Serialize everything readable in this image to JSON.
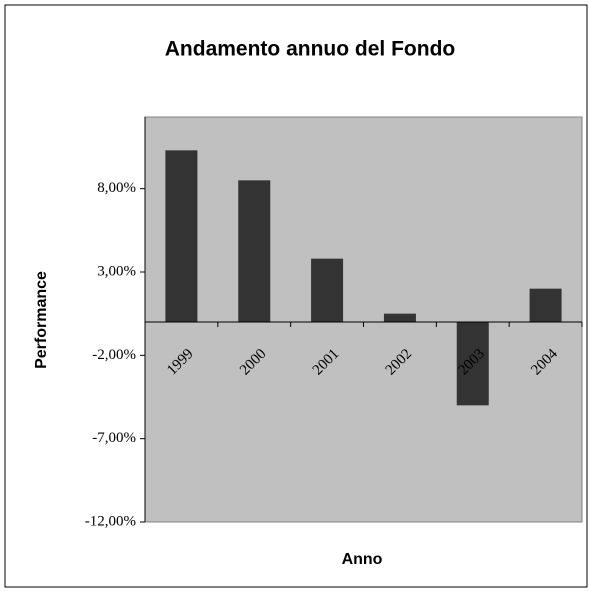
{
  "chart_data": {
    "type": "bar",
    "title": "Andamento annuo del Fondo",
    "x_label": "Anno",
    "y_label": "Performance",
    "categories": [
      "1999",
      "2000",
      "2001",
      "2002",
      "2003",
      "2004"
    ],
    "values": [
      10.3,
      8.5,
      3.8,
      0.5,
      -5.0,
      2.0
    ],
    "color": "#333333",
    "plot_background": "#c0c0c0",
    "ylim": [
      -12,
      12.3
    ],
    "yticks": [
      {
        "value": -12,
        "label": "-12,00%"
      },
      {
        "value": -7,
        "label": "-7,00%"
      },
      {
        "value": -2,
        "label": "-2,00%"
      },
      {
        "value": 3,
        "label": "3,00%"
      },
      {
        "value": 8,
        "label": "8,00%"
      }
    ]
  }
}
